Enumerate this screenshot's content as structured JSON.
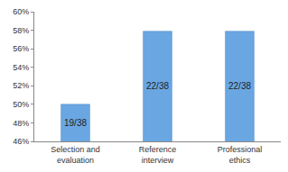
{
  "chart_data": {
    "type": "bar",
    "categories": [
      "Selection and evaluation",
      "Reference interview",
      "Professional ethics"
    ],
    "values": [
      50,
      57.89,
      57.89
    ],
    "value_labels": [
      "19/38",
      "22/38",
      "22/38"
    ],
    "data_labels": true,
    "color": "#6aa7e2",
    "ylim": [
      46,
      60
    ],
    "yticks": [
      {
        "value": 46,
        "label": "46%"
      },
      {
        "value": 48,
        "label": "48%"
      },
      {
        "value": 50,
        "label": "50%"
      },
      {
        "value": 52,
        "label": "52%"
      },
      {
        "value": 54,
        "label": "54%"
      },
      {
        "value": 56,
        "label": "56%"
      },
      {
        "value": 58,
        "label": "58%"
      },
      {
        "value": 60,
        "label": "60%"
      }
    ],
    "grid": false
  }
}
